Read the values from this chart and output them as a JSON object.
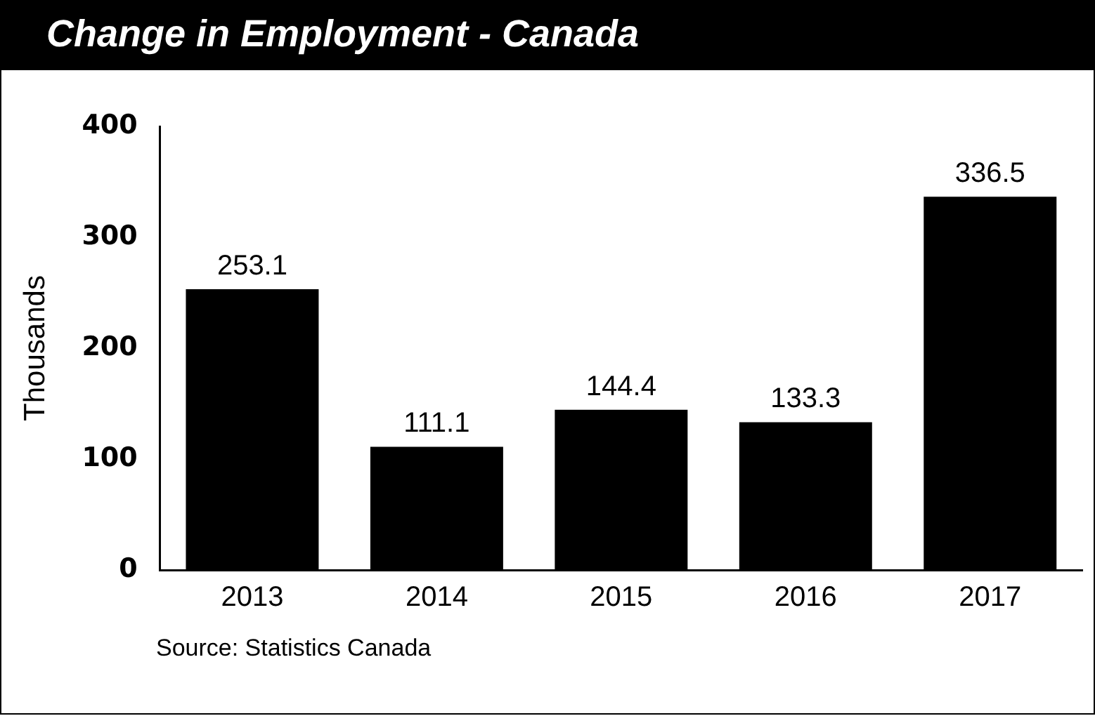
{
  "chart_data": {
    "type": "bar",
    "title": "Change in Employment - Canada",
    "ylabel": "Thousands",
    "categories": [
      "2013",
      "2014",
      "2015",
      "2016",
      "2017"
    ],
    "values": [
      253.1,
      111.1,
      144.4,
      133.3,
      336.5
    ],
    "color": "#000000",
    "ylim": [
      0,
      400
    ],
    "yticks": [
      0,
      100,
      200,
      300,
      400
    ],
    "grid": false,
    "data_labels": true,
    "legend": false,
    "annotations": [
      "Source: Statistics Canada"
    ]
  }
}
